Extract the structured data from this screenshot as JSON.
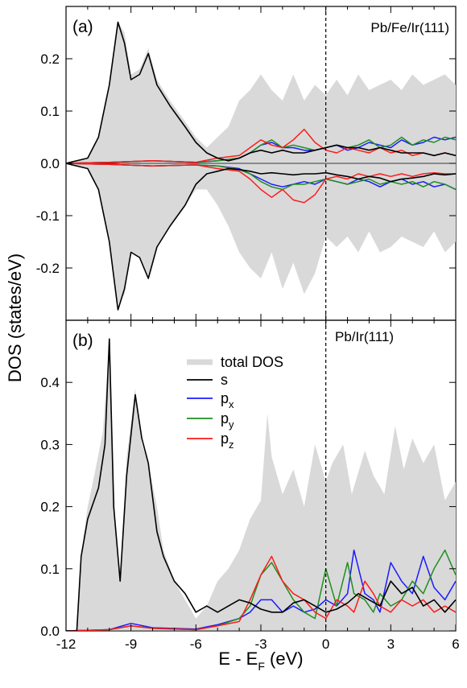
{
  "figure": {
    "ylabel": "DOS (states/eV)",
    "xlabel_main": "E - E",
    "xlabel_sub": "F",
    "xlabel_unit": " (eV)",
    "xticks": [
      "-12",
      "-9",
      "-6",
      "-3",
      "0",
      "3",
      "6"
    ],
    "colors": {
      "total": "#d9d9d9",
      "s": "#000000",
      "px": "#1a1aff",
      "py": "#1e8f1e",
      "pz": "#ff1a1a",
      "fermi": "#000000"
    }
  },
  "legend": [
    {
      "key": "total",
      "label": "total DOS",
      "sub": ""
    },
    {
      "key": "s",
      "label": "s",
      "sub": ""
    },
    {
      "key": "px",
      "label": "p",
      "sub": "x"
    },
    {
      "key": "py",
      "label": "p",
      "sub": "y"
    },
    {
      "key": "pz",
      "label": "p",
      "sub": "z"
    }
  ],
  "chart_data": [
    {
      "type": "area",
      "panel_label": "(a)",
      "system": "Pb/Fe/Ir(111)",
      "xlim": [
        -12,
        6
      ],
      "ylim": [
        -0.3,
        0.3
      ],
      "yticks": [
        "0.2",
        "0.1",
        "0.0",
        "-0.1",
        "-0.2"
      ],
      "ytick_values": [
        0.2,
        0.1,
        0.0,
        -0.1,
        -0.2
      ],
      "spin_polarized": true,
      "fermi_level": 0,
      "series": [
        {
          "key": "total",
          "x": [
            -12,
            -11,
            -10.5,
            -10,
            -9.6,
            -9.3,
            -9,
            -8.6,
            -8.2,
            -7.8,
            -7.2,
            -6.5,
            -6,
            -5.5,
            -5,
            -4.5,
            -4,
            -3.5,
            -3,
            -2.5,
            -2,
            -1.5,
            -1,
            -0.5,
            0,
            0.5,
            1,
            1.5,
            2,
            2.5,
            3,
            3.5,
            4,
            4.5,
            5,
            5.5,
            6
          ],
          "up": [
            0,
            0.01,
            0.05,
            0.15,
            0.27,
            0.25,
            0.17,
            0.18,
            0.22,
            0.16,
            0.12,
            0.08,
            0.05,
            0.03,
            0.05,
            0.07,
            0.12,
            0.14,
            0.17,
            0.14,
            0.12,
            0.17,
            0.12,
            0.15,
            0.13,
            0.16,
            0.13,
            0.17,
            0.14,
            0.15,
            0.16,
            0.14,
            0.17,
            0.15,
            0.16,
            0.17,
            0.15
          ],
          "down": [
            0,
            -0.01,
            -0.05,
            -0.15,
            -0.27,
            -0.25,
            -0.17,
            -0.18,
            -0.22,
            -0.16,
            -0.12,
            -0.08,
            -0.05,
            -0.05,
            -0.08,
            -0.12,
            -0.17,
            -0.2,
            -0.22,
            -0.17,
            -0.24,
            -0.19,
            -0.25,
            -0.21,
            -0.14,
            -0.16,
            -0.14,
            -0.17,
            -0.13,
            -0.17,
            -0.16,
            -0.14,
            -0.15,
            -0.16,
            -0.13,
            -0.17,
            -0.15
          ]
        },
        {
          "key": "s",
          "x": [
            -12,
            -11,
            -10.5,
            -10,
            -9.6,
            -9.3,
            -9,
            -8.6,
            -8.2,
            -7.8,
            -7.2,
            -6.5,
            -6,
            -5.5,
            -5,
            -4.5,
            -4,
            -3.5,
            -3,
            -2.5,
            -2,
            -1.5,
            -1,
            -0.5,
            0,
            0.5,
            1,
            1.5,
            2,
            2.5,
            3,
            3.5,
            4,
            4.5,
            5,
            5.5,
            6
          ],
          "up": [
            0,
            0.01,
            0.05,
            0.15,
            0.27,
            0.23,
            0.16,
            0.17,
            0.21,
            0.15,
            0.11,
            0.07,
            0.04,
            0.02,
            0.01,
            0.005,
            0.01,
            0.02,
            0.025,
            0.02,
            0.025,
            0.02,
            0.02,
            0.025,
            0.03,
            0.035,
            0.03,
            0.03,
            0.025,
            0.03,
            0.025,
            0.02,
            0.02,
            0.02,
            0.015,
            0.02,
            0.015
          ],
          "down": [
            0,
            -0.01,
            -0.05,
            -0.15,
            -0.28,
            -0.24,
            -0.17,
            -0.18,
            -0.22,
            -0.16,
            -0.12,
            -0.08,
            -0.04,
            -0.02,
            -0.015,
            -0.01,
            -0.012,
            -0.015,
            -0.02,
            -0.018,
            -0.02,
            -0.022,
            -0.02,
            -0.02,
            -0.018,
            -0.022,
            -0.025,
            -0.03,
            -0.025,
            -0.028,
            -0.035,
            -0.03,
            -0.028,
            -0.025,
            -0.02,
            -0.022,
            -0.02
          ]
        },
        {
          "key": "px",
          "x": [
            -12,
            -10,
            -8,
            -6,
            -5,
            -4,
            -3.5,
            -3,
            -2.5,
            -2,
            -1.5,
            -1,
            -0.5,
            0,
            0.5,
            1,
            1.5,
            2,
            2.5,
            3,
            3.5,
            4,
            4.5,
            5,
            5.5,
            6
          ],
          "up": [
            0,
            0.002,
            0.005,
            0.002,
            0.005,
            0.01,
            0.02,
            0.035,
            0.04,
            0.03,
            0.03,
            0.025,
            0.025,
            0.03,
            0.035,
            0.025,
            0.03,
            0.04,
            0.035,
            0.03,
            0.045,
            0.035,
            0.04,
            0.05,
            0.045,
            0.05
          ],
          "down": [
            0,
            -0.002,
            -0.005,
            -0.003,
            -0.005,
            -0.01,
            -0.02,
            -0.03,
            -0.04,
            -0.045,
            -0.04,
            -0.035,
            -0.04,
            -0.03,
            -0.035,
            -0.04,
            -0.03,
            -0.035,
            -0.045,
            -0.035,
            -0.03,
            -0.04,
            -0.035,
            -0.045,
            -0.04,
            -0.05
          ]
        },
        {
          "key": "py",
          "x": [
            -12,
            -10,
            -8,
            -6,
            -5,
            -4,
            -3.5,
            -3,
            -2.5,
            -2,
            -1.5,
            -1,
            -0.5,
            0,
            0.5,
            1,
            1.5,
            2,
            2.5,
            3,
            3.5,
            4,
            4.5,
            5,
            5.5,
            6
          ],
          "up": [
            0,
            0.002,
            0.005,
            0.002,
            0.005,
            0.01,
            0.02,
            0.035,
            0.045,
            0.03,
            0.035,
            0.03,
            0.025,
            0.03,
            0.035,
            0.03,
            0.035,
            0.045,
            0.03,
            0.035,
            0.05,
            0.035,
            0.045,
            0.04,
            0.05,
            0.045
          ],
          "down": [
            0,
            -0.002,
            -0.005,
            -0.003,
            -0.005,
            -0.012,
            -0.02,
            -0.035,
            -0.045,
            -0.05,
            -0.04,
            -0.04,
            -0.035,
            -0.03,
            -0.035,
            -0.04,
            -0.035,
            -0.03,
            -0.04,
            -0.035,
            -0.04,
            -0.035,
            -0.045,
            -0.035,
            -0.04,
            -0.05
          ]
        },
        {
          "key": "pz",
          "x": [
            -12,
            -10,
            -8,
            -6,
            -5,
            -4,
            -3.5,
            -3,
            -2.5,
            -2,
            -1.5,
            -1,
            -0.5,
            0,
            0.5,
            1,
            1.5,
            2,
            2.5,
            3,
            3.5,
            4,
            4.5,
            5,
            5.5,
            6
          ],
          "up": [
            0,
            0.002,
            0.005,
            0.002,
            0.01,
            0.015,
            0.03,
            0.045,
            0.035,
            0.03,
            0.045,
            0.065,
            0.04,
            0.025,
            0.02,
            0.03,
            0.025,
            0.02,
            0.03,
            0.02,
            0.025,
            0.015,
            0.02,
            0.015,
            0.02,
            0.015
          ],
          "down": [
            0,
            -0.002,
            -0.005,
            -0.003,
            -0.01,
            -0.015,
            -0.03,
            -0.05,
            -0.065,
            -0.05,
            -0.07,
            -0.075,
            -0.06,
            -0.03,
            -0.025,
            -0.03,
            -0.02,
            -0.025,
            -0.02,
            -0.025,
            -0.02,
            -0.025,
            -0.02,
            -0.018,
            -0.02,
            -0.02
          ]
        }
      ]
    },
    {
      "type": "area",
      "panel_label": "(b)",
      "system": "Pb/Ir(111)",
      "xlim": [
        -12,
        6
      ],
      "ylim": [
        0,
        0.5
      ],
      "yticks": [
        "0.4",
        "0.3",
        "0.2",
        "0.1",
        "0.0"
      ],
      "ytick_values": [
        0.4,
        0.3,
        0.2,
        0.1,
        0.0
      ],
      "spin_polarized": false,
      "fermi_level": 0,
      "series": [
        {
          "key": "total",
          "x": [
            -12,
            -11.5,
            -11.2,
            -11,
            -10.7,
            -10.3,
            -10,
            -9.7,
            -9.5,
            -9.2,
            -8.8,
            -8.5,
            -8.2,
            -7.8,
            -7.5,
            -7,
            -6.5,
            -6,
            -5.5,
            -5,
            -4.5,
            -4,
            -3.5,
            -3,
            -2.7,
            -2.5,
            -2,
            -1.5,
            -1,
            -0.5,
            0,
            0.3,
            0.8,
            1.2,
            1.8,
            2.2,
            2.7,
            3.2,
            3.6,
            4,
            4.5,
            5,
            5.5,
            6
          ],
          "y": [
            0,
            0,
            0.15,
            0.2,
            0.25,
            0.32,
            0.47,
            0.15,
            0.08,
            0.28,
            0.39,
            0.3,
            0.27,
            0.2,
            0.13,
            0.08,
            0.05,
            0.02,
            0.04,
            0.08,
            0.1,
            0.13,
            0.18,
            0.21,
            0.35,
            0.28,
            0.22,
            0.26,
            0.2,
            0.3,
            0.24,
            0.27,
            0.3,
            0.22,
            0.29,
            0.25,
            0.22,
            0.33,
            0.26,
            0.31,
            0.27,
            0.3,
            0.21,
            0.24
          ]
        },
        {
          "key": "s",
          "x": [
            -12,
            -11.5,
            -11.3,
            -11,
            -10.5,
            -10.2,
            -10,
            -9.8,
            -9.5,
            -9.2,
            -8.8,
            -8.5,
            -8.2,
            -7.8,
            -7.5,
            -7,
            -6.5,
            -6,
            -5.5,
            -5,
            -4.5,
            -4,
            -3.5,
            -3,
            -2.5,
            -2,
            -1.5,
            -1,
            -0.5,
            0,
            0.5,
            1,
            1.5,
            2,
            2.5,
            3,
            3.5,
            4,
            4.5,
            5,
            5.5,
            6
          ],
          "y": [
            0,
            0,
            0.12,
            0.18,
            0.23,
            0.3,
            0.47,
            0.2,
            0.08,
            0.25,
            0.38,
            0.31,
            0.27,
            0.16,
            0.12,
            0.08,
            0.06,
            0.03,
            0.04,
            0.03,
            0.04,
            0.05,
            0.045,
            0.035,
            0.03,
            0.03,
            0.045,
            0.05,
            0.04,
            0.03,
            0.035,
            0.045,
            0.06,
            0.05,
            0.04,
            0.08,
            0.06,
            0.07,
            0.04,
            0.05,
            0.03,
            0.05
          ]
        },
        {
          "key": "px",
          "x": [
            -12,
            -10,
            -9,
            -8,
            -6,
            -5,
            -4,
            -3.5,
            -3,
            -2.5,
            -2,
            -1.5,
            -1,
            -0.5,
            0,
            0.5,
            1,
            1.3,
            1.8,
            2.2,
            2.5,
            3,
            3.5,
            4,
            4.5,
            5,
            5.5,
            6
          ],
          "y": [
            0,
            0.002,
            0.012,
            0.005,
            0.003,
            0.01,
            0.02,
            0.03,
            0.05,
            0.05,
            0.03,
            0.04,
            0.03,
            0.035,
            0.05,
            0.04,
            0.06,
            0.13,
            0.06,
            0.05,
            0.03,
            0.11,
            0.08,
            0.06,
            0.12,
            0.07,
            0.05,
            0.08
          ]
        },
        {
          "key": "py",
          "x": [
            -12,
            -10,
            -9,
            -8,
            -6,
            -5,
            -4,
            -3.5,
            -3,
            -2.5,
            -2,
            -1.5,
            -1,
            -0.5,
            0,
            0.5,
            1,
            1.3,
            1.8,
            2.2,
            2.5,
            3,
            3.5,
            4,
            4.5,
            5,
            5.5,
            6
          ],
          "y": [
            0,
            0.002,
            0.008,
            0.004,
            0.002,
            0.008,
            0.02,
            0.04,
            0.09,
            0.11,
            0.08,
            0.05,
            0.03,
            0.02,
            0.1,
            0.04,
            0.11,
            0.06,
            0.05,
            0.03,
            0.06,
            0.04,
            0.05,
            0.08,
            0.06,
            0.1,
            0.13,
            0.09
          ]
        },
        {
          "key": "pz",
          "x": [
            -12,
            -10,
            -9,
            -8,
            -6,
            -5,
            -4,
            -3.5,
            -3,
            -2.5,
            -2,
            -1.5,
            -1,
            -0.5,
            0,
            0.5,
            1,
            1.3,
            1.8,
            2.2,
            2.5,
            3,
            3.5,
            4,
            4.5,
            5,
            5.5,
            6
          ],
          "y": [
            0,
            0.002,
            0.008,
            0.004,
            0.002,
            0.008,
            0.015,
            0.05,
            0.09,
            0.12,
            0.08,
            0.06,
            0.05,
            0.03,
            0.02,
            0.05,
            0.04,
            0.03,
            0.08,
            0.06,
            0.04,
            0.03,
            0.05,
            0.04,
            0.05,
            0.03,
            0.04,
            0.03
          ]
        }
      ]
    }
  ]
}
